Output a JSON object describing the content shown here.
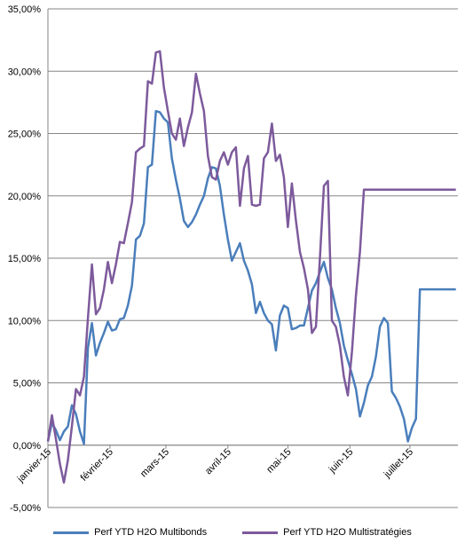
{
  "chart_data": {
    "type": "line",
    "title": "",
    "xlabel": "",
    "ylabel": "",
    "y_tick_labels": [
      "-5,00%",
      "0,00%",
      "5,00%",
      "10,00%",
      "15,00%",
      "20,00%",
      "25,00%",
      "30,00%",
      "35,00%"
    ],
    "ylim": [
      -5,
      35
    ],
    "x_tick_labels": [
      "janvier-15",
      "février-15",
      "mars-15",
      "avril-15",
      "mai-15",
      "juin-15",
      "juillet-15"
    ],
    "xlim": [
      "2015-01-01",
      "2015-07-25"
    ],
    "grid": "horizontal",
    "legend_position": "bottom",
    "series": [
      {
        "name": "Perf YTD H2O Multibonds",
        "color": "#4a7ebb",
        "x": [
          "2015-01-01",
          "2015-01-03",
          "2015-01-05",
          "2015-01-07",
          "2015-01-09",
          "2015-01-11",
          "2015-01-13",
          "2015-01-15",
          "2015-01-17",
          "2015-01-19",
          "2015-01-21",
          "2015-01-23",
          "2015-01-25",
          "2015-01-27",
          "2015-01-29",
          "2015-01-31",
          "2015-02-02",
          "2015-02-04",
          "2015-02-06",
          "2015-02-08",
          "2015-02-10",
          "2015-02-12",
          "2015-02-14",
          "2015-02-16",
          "2015-02-18",
          "2015-02-20",
          "2015-02-22",
          "2015-02-24",
          "2015-02-26",
          "2015-02-28",
          "2015-03-02",
          "2015-03-04",
          "2015-03-06",
          "2015-03-08",
          "2015-03-10",
          "2015-03-12",
          "2015-03-14",
          "2015-03-16",
          "2015-03-18",
          "2015-03-20",
          "2015-03-22",
          "2015-03-24",
          "2015-03-26",
          "2015-03-28",
          "2015-03-30",
          "2015-04-01",
          "2015-04-03",
          "2015-04-05",
          "2015-04-07",
          "2015-04-09",
          "2015-04-11",
          "2015-04-13",
          "2015-04-15",
          "2015-04-17",
          "2015-04-19",
          "2015-04-21",
          "2015-04-23",
          "2015-04-25",
          "2015-04-27",
          "2015-04-29",
          "2015-05-01",
          "2015-05-03",
          "2015-05-05",
          "2015-05-07",
          "2015-05-09",
          "2015-05-11",
          "2015-05-13",
          "2015-05-15",
          "2015-05-17",
          "2015-05-19",
          "2015-05-21",
          "2015-05-23",
          "2015-05-25",
          "2015-05-27",
          "2015-05-29",
          "2015-05-31",
          "2015-06-02",
          "2015-06-04",
          "2015-06-06",
          "2015-06-08",
          "2015-06-10",
          "2015-06-12",
          "2015-06-14",
          "2015-06-16",
          "2015-06-18",
          "2015-06-20",
          "2015-06-22",
          "2015-06-24",
          "2015-06-26",
          "2015-06-28",
          "2015-06-30",
          "2015-07-02",
          "2015-07-04",
          "2015-07-06",
          "2015-07-08",
          "2015-07-10",
          "2015-07-12",
          "2015-07-14",
          "2015-07-16",
          "2015-07-18",
          "2015-07-20",
          "2015-07-22",
          "2015-07-24"
        ],
        "values": [
          0.3,
          1.8,
          1.2,
          0.4,
          1.1,
          1.5,
          3.2,
          2.5,
          1.1,
          0.1,
          7.8,
          9.8,
          7.2,
          8.2,
          9.0,
          9.9,
          9.2,
          9.3,
          10.1,
          10.2,
          11.2,
          12.8,
          16.5,
          16.8,
          17.8,
          22.3,
          22.5,
          26.8,
          26.7,
          26.2,
          25.9,
          23.0,
          21.3,
          19.8,
          18.0,
          17.5,
          17.9,
          18.5,
          19.3,
          20.0,
          21.4,
          22.3,
          22.2,
          20.8,
          18.5,
          16.5,
          14.8,
          15.5,
          16.2,
          14.8,
          14.0,
          12.9,
          10.6,
          11.5,
          10.6,
          10.0,
          9.7,
          7.6,
          10.4,
          11.2,
          11.0,
          9.3,
          9.4,
          9.6,
          9.6,
          11.0,
          12.4,
          13.0,
          13.9,
          14.7,
          13.4,
          12.5,
          11.0,
          9.8,
          8.0,
          6.8,
          5.7,
          4.5,
          2.3,
          3.4,
          4.8,
          5.5,
          7.1,
          9.5,
          10.2,
          9.8,
          4.3,
          3.8,
          3.1,
          2.1,
          0.3,
          1.4,
          2.1,
          12.5,
          12.5,
          12.5,
          12.5,
          12.5,
          12.5,
          12.5,
          12.5,
          12.5,
          12.5
        ]
      },
      {
        "name": "Perf YTD H2O Multistratégies",
        "color": "#7d5a9c",
        "x": [
          "2015-01-01",
          "2015-01-03",
          "2015-01-05",
          "2015-01-07",
          "2015-01-09",
          "2015-01-11",
          "2015-01-13",
          "2015-01-15",
          "2015-01-17",
          "2015-01-19",
          "2015-01-21",
          "2015-01-23",
          "2015-01-25",
          "2015-01-27",
          "2015-01-29",
          "2015-01-31",
          "2015-02-02",
          "2015-02-04",
          "2015-02-06",
          "2015-02-08",
          "2015-02-10",
          "2015-02-12",
          "2015-02-14",
          "2015-02-16",
          "2015-02-18",
          "2015-02-20",
          "2015-02-22",
          "2015-02-24",
          "2015-02-26",
          "2015-02-28",
          "2015-03-02",
          "2015-03-04",
          "2015-03-06",
          "2015-03-08",
          "2015-03-10",
          "2015-03-12",
          "2015-03-14",
          "2015-03-16",
          "2015-03-18",
          "2015-03-20",
          "2015-03-22",
          "2015-03-24",
          "2015-03-26",
          "2015-03-28",
          "2015-03-30",
          "2015-04-01",
          "2015-04-03",
          "2015-04-05",
          "2015-04-07",
          "2015-04-09",
          "2015-04-11",
          "2015-04-13",
          "2015-04-15",
          "2015-04-17",
          "2015-04-19",
          "2015-04-21",
          "2015-04-23",
          "2015-04-25",
          "2015-04-27",
          "2015-04-29",
          "2015-05-01",
          "2015-05-03",
          "2015-05-05",
          "2015-05-07",
          "2015-05-09",
          "2015-05-11",
          "2015-05-13",
          "2015-05-15",
          "2015-05-17",
          "2015-05-19",
          "2015-05-21",
          "2015-05-23",
          "2015-05-25",
          "2015-05-27",
          "2015-05-29",
          "2015-05-31",
          "2015-06-02",
          "2015-06-04",
          "2015-06-06",
          "2015-06-08",
          "2015-06-10",
          "2015-06-12",
          "2015-06-14",
          "2015-06-16",
          "2015-06-18",
          "2015-06-20",
          "2015-06-22",
          "2015-06-24",
          "2015-06-26",
          "2015-06-28",
          "2015-06-30",
          "2015-07-02",
          "2015-07-04",
          "2015-07-06",
          "2015-07-08",
          "2015-07-10",
          "2015-07-12",
          "2015-07-14",
          "2015-07-16",
          "2015-07-18",
          "2015-07-20",
          "2015-07-22",
          "2015-07-24"
        ],
        "values": [
          0.3,
          2.4,
          0.5,
          -1.5,
          -3.0,
          -1.2,
          1.5,
          4.5,
          4.0,
          5.5,
          10.2,
          14.5,
          10.5,
          11.0,
          12.5,
          14.7,
          13.0,
          14.5,
          16.3,
          16.2,
          17.8,
          19.5,
          23.5,
          23.8,
          24.0,
          29.2,
          29.0,
          31.5,
          31.6,
          28.7,
          26.8,
          25.0,
          24.5,
          26.2,
          24.0,
          25.5,
          26.7,
          29.8,
          28.2,
          26.8,
          23.2,
          21.5,
          21.3,
          22.8,
          23.5,
          22.5,
          23.5,
          23.9,
          19.2,
          22.2,
          23.2,
          19.3,
          19.2,
          19.3,
          23.0,
          23.5,
          25.8,
          22.8,
          23.3,
          21.5,
          17.5,
          21.0,
          18.0,
          15.5,
          14.2,
          12.5,
          9.0,
          9.5,
          15.0,
          20.8,
          21.2,
          10.0,
          9.5,
          8.0,
          5.5,
          4.0,
          7.5,
          12.0,
          15.5,
          20.5,
          20.5,
          20.5,
          20.5,
          20.5,
          20.5,
          20.5,
          20.5,
          20.5,
          20.5,
          20.5,
          20.5,
          20.5,
          20.5,
          20.5,
          20.5,
          20.5,
          20.5,
          20.5,
          20.5,
          20.5,
          20.5,
          20.5,
          20.5
        ]
      }
    ]
  }
}
